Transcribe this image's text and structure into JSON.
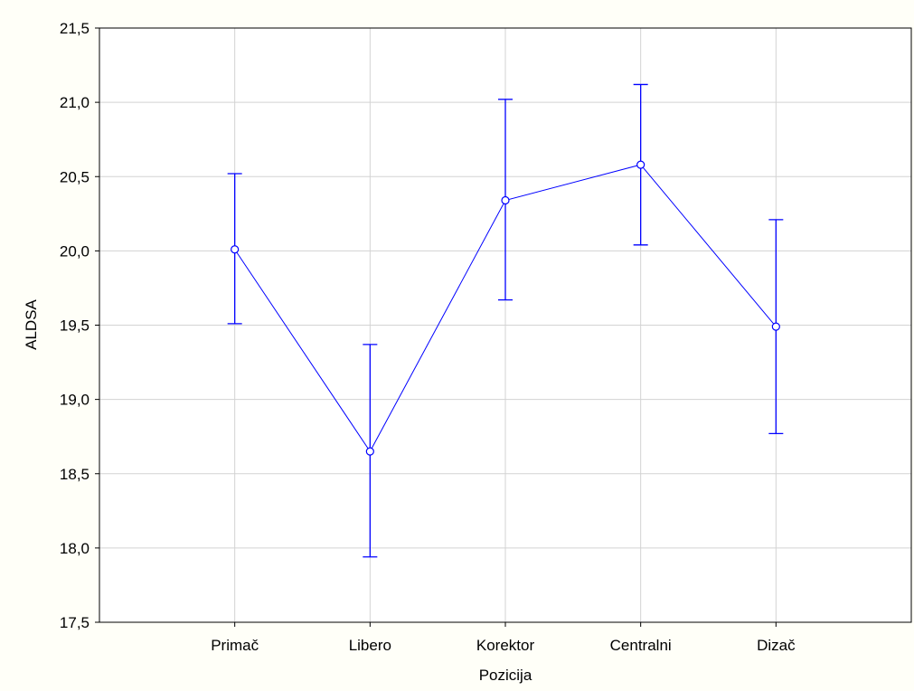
{
  "colors": {
    "background": "#fffff8",
    "plot_background": "#ffffff",
    "grid": "#d3d3d3",
    "axis": "#000000",
    "series": "#0000ff"
  },
  "chart_data": {
    "type": "line",
    "xlabel": "Pozicija",
    "ylabel": "ALDSA",
    "categories": [
      "Primač",
      "Libero",
      "Korektor",
      "Centralni",
      "Dizač"
    ],
    "series": [
      {
        "values": [
          20.01,
          18.65,
          20.34,
          20.58,
          19.49
        ],
        "error_low": [
          19.51,
          17.94,
          19.67,
          20.04,
          18.77
        ],
        "error_high": [
          20.52,
          19.37,
          21.02,
          21.12,
          20.21
        ],
        "marker": "circle-open"
      }
    ],
    "ylim": [
      17.5,
      21.5
    ],
    "yticks": [
      17.5,
      18.0,
      18.5,
      19.0,
      19.5,
      20.0,
      20.5,
      21.0,
      21.5
    ],
    "ytick_labels": [
      "17,5",
      "18,0",
      "18,5",
      "19,0",
      "19,5",
      "20,0",
      "20,5",
      "21,0",
      "21,5"
    ],
    "grid": true,
    "legend": "none"
  }
}
